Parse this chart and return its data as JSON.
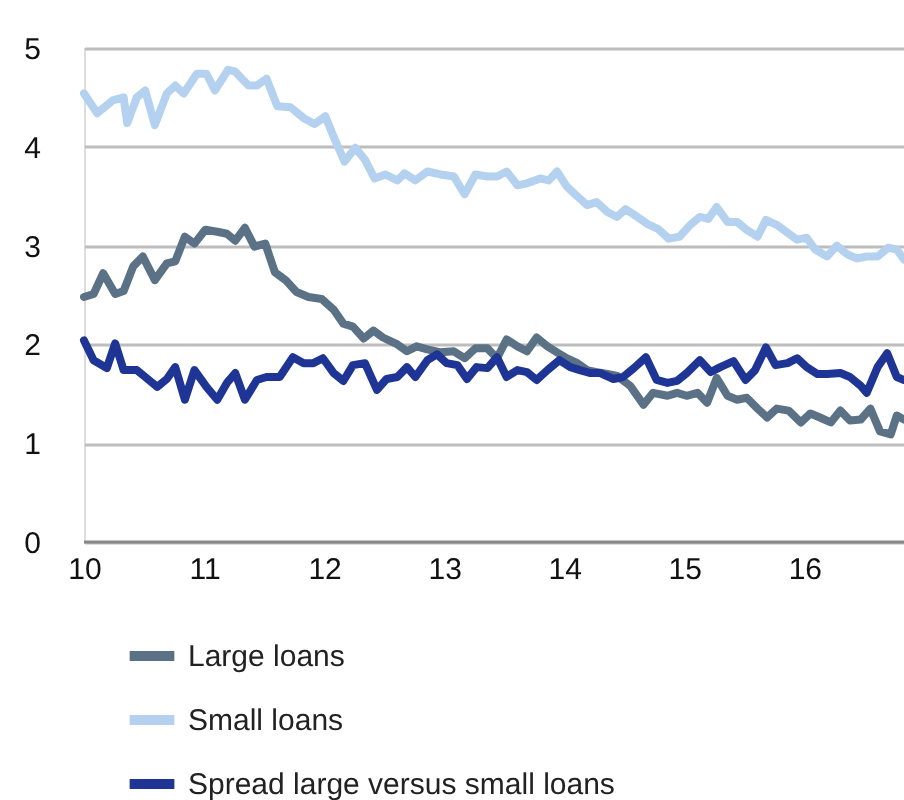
{
  "chart_data": {
    "type": "line",
    "xlim": [
      10,
      16.83
    ],
    "xticks": [
      10,
      11,
      12,
      13,
      14,
      15,
      16
    ],
    "ylim": [
      0,
      5
    ],
    "yticks": [
      0,
      1,
      2,
      3,
      4,
      5
    ],
    "grid": "y",
    "legend": "bottom",
    "line_style": "solid",
    "marker": "none",
    "series": [
      {
        "name": "Large loans",
        "color": "#5a7186",
        "x": [
          10.0,
          10.08,
          10.16,
          10.26,
          10.33,
          10.41,
          10.49,
          10.59,
          10.69,
          10.76,
          10.84,
          10.92,
          11.01,
          11.11,
          11.19,
          11.26,
          11.34,
          11.42,
          11.51,
          11.59,
          11.68,
          11.77,
          11.87,
          11.98,
          12.08,
          12.16,
          12.24,
          12.33,
          12.41,
          12.49,
          12.61,
          12.69,
          12.77,
          12.86,
          12.97,
          13.08,
          13.17,
          13.26,
          13.36,
          13.44,
          13.52,
          13.61,
          13.69,
          13.77,
          13.86,
          13.94,
          14.02,
          14.11,
          14.19,
          14.27,
          14.36,
          14.44,
          14.55,
          14.66,
          14.74,
          14.86,
          14.94,
          15.02,
          15.11,
          15.19,
          15.27,
          15.36,
          15.44,
          15.52,
          15.61,
          15.69,
          15.77,
          15.87,
          15.97,
          16.05,
          16.13,
          16.22,
          16.3,
          16.38,
          16.47,
          16.55,
          16.63,
          16.72,
          16.77,
          16.83
        ],
        "values": [
          2.48,
          2.51,
          2.72,
          2.51,
          2.54,
          2.79,
          2.89,
          2.65,
          2.82,
          2.84,
          3.09,
          3.02,
          3.16,
          3.14,
          3.12,
          3.05,
          3.18,
          2.99,
          3.02,
          2.73,
          2.65,
          2.53,
          2.48,
          2.46,
          2.35,
          2.21,
          2.18,
          2.06,
          2.14,
          2.07,
          2.0,
          1.93,
          1.98,
          1.95,
          1.92,
          1.93,
          1.86,
          1.96,
          1.96,
          1.86,
          2.05,
          1.98,
          1.93,
          2.07,
          1.98,
          1.92,
          1.86,
          1.81,
          1.74,
          1.72,
          1.7,
          1.68,
          1.58,
          1.39,
          1.51,
          1.48,
          1.51,
          1.48,
          1.51,
          1.41,
          1.66,
          1.48,
          1.44,
          1.46,
          1.35,
          1.26,
          1.35,
          1.33,
          1.21,
          1.3,
          1.26,
          1.21,
          1.33,
          1.23,
          1.24,
          1.35,
          1.12,
          1.09,
          1.28,
          1.24
        ]
      },
      {
        "name": "Small loans",
        "color": "#b4d2f0",
        "x": [
          10.0,
          10.11,
          10.24,
          10.33,
          10.36,
          10.44,
          10.51,
          10.59,
          10.69,
          10.76,
          10.83,
          10.94,
          11.02,
          11.09,
          11.2,
          11.26,
          11.37,
          11.44,
          11.52,
          11.61,
          11.72,
          11.83,
          11.92,
          12.01,
          12.08,
          12.17,
          12.26,
          12.34,
          12.42,
          12.51,
          12.61,
          12.67,
          12.76,
          12.86,
          12.97,
          13.08,
          13.17,
          13.26,
          13.36,
          13.44,
          13.52,
          13.61,
          13.69,
          13.8,
          13.87,
          13.94,
          14.02,
          14.09,
          14.19,
          14.27,
          14.36,
          14.44,
          14.51,
          14.61,
          14.69,
          14.78,
          14.87,
          14.96,
          15.05,
          15.13,
          15.2,
          15.27,
          15.36,
          15.44,
          15.52,
          15.61,
          15.68,
          15.77,
          15.86,
          15.94,
          16.02,
          16.09,
          16.19,
          16.27,
          16.36,
          16.44,
          16.52,
          16.61,
          16.7,
          16.77,
          16.83
        ],
        "values": [
          4.54,
          4.34,
          4.47,
          4.5,
          4.24,
          4.5,
          4.57,
          4.22,
          4.54,
          4.62,
          4.54,
          4.74,
          4.74,
          4.57,
          4.78,
          4.76,
          4.62,
          4.62,
          4.69,
          4.41,
          4.4,
          4.29,
          4.23,
          4.31,
          4.1,
          3.85,
          3.99,
          3.87,
          3.68,
          3.72,
          3.66,
          3.73,
          3.66,
          3.75,
          3.72,
          3.7,
          3.52,
          3.72,
          3.7,
          3.7,
          3.75,
          3.61,
          3.63,
          3.68,
          3.66,
          3.75,
          3.6,
          3.52,
          3.41,
          3.44,
          3.34,
          3.29,
          3.37,
          3.29,
          3.22,
          3.17,
          3.07,
          3.09,
          3.21,
          3.29,
          3.27,
          3.39,
          3.24,
          3.24,
          3.16,
          3.09,
          3.26,
          3.21,
          3.13,
          3.06,
          3.08,
          2.96,
          2.89,
          3.0,
          2.91,
          2.87,
          2.89,
          2.89,
          2.98,
          2.96,
          2.86
        ]
      },
      {
        "name": "Spread large versus small loans",
        "color": "#1f3596",
        "x": [
          10.0,
          10.08,
          10.19,
          10.26,
          10.33,
          10.44,
          10.51,
          10.61,
          10.69,
          10.76,
          10.84,
          10.92,
          11.02,
          11.11,
          11.19,
          11.26,
          11.34,
          11.44,
          11.52,
          11.63,
          11.74,
          11.83,
          11.91,
          11.99,
          12.08,
          12.16,
          12.24,
          12.34,
          12.44,
          12.52,
          12.61,
          12.69,
          12.76,
          12.86,
          12.94,
          13.02,
          13.11,
          13.19,
          13.27,
          13.36,
          13.44,
          13.52,
          13.61,
          13.69,
          13.77,
          13.86,
          13.96,
          14.05,
          14.13,
          14.22,
          14.3,
          14.41,
          14.49,
          14.58,
          14.68,
          14.77,
          14.86,
          14.94,
          15.02,
          15.13,
          15.22,
          15.3,
          15.41,
          15.51,
          15.59,
          15.68,
          15.76,
          15.86,
          15.94,
          16.02,
          16.11,
          16.19,
          16.3,
          16.38,
          16.47,
          16.52,
          16.61,
          16.69,
          16.77,
          16.83
        ],
        "values": [
          2.04,
          1.84,
          1.76,
          2.01,
          1.74,
          1.74,
          1.67,
          1.57,
          1.65,
          1.77,
          1.44,
          1.74,
          1.57,
          1.44,
          1.61,
          1.71,
          1.44,
          1.64,
          1.67,
          1.67,
          1.87,
          1.81,
          1.81,
          1.86,
          1.71,
          1.63,
          1.79,
          1.81,
          1.54,
          1.65,
          1.67,
          1.77,
          1.67,
          1.84,
          1.9,
          1.81,
          1.79,
          1.65,
          1.77,
          1.76,
          1.87,
          1.67,
          1.74,
          1.72,
          1.64,
          1.74,
          1.84,
          1.77,
          1.74,
          1.71,
          1.71,
          1.65,
          1.67,
          1.76,
          1.87,
          1.64,
          1.61,
          1.63,
          1.71,
          1.84,
          1.72,
          1.77,
          1.83,
          1.64,
          1.74,
          1.97,
          1.79,
          1.81,
          1.86,
          1.77,
          1.7,
          1.7,
          1.71,
          1.67,
          1.58,
          1.51,
          1.77,
          1.91,
          1.67,
          1.64
        ]
      }
    ]
  }
}
